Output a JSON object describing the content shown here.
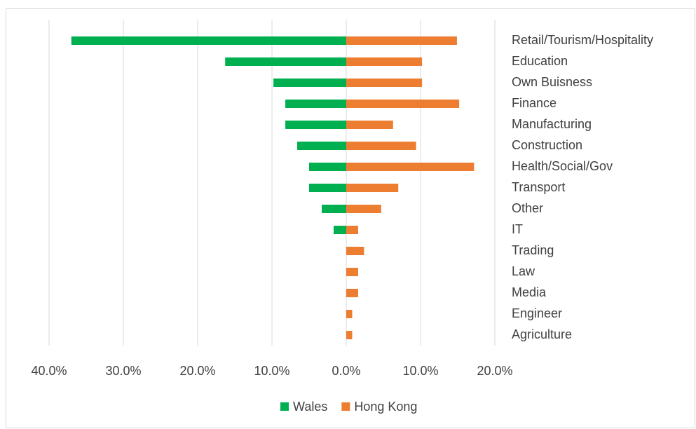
{
  "chart_data": {
    "type": "butterfly",
    "categories": [
      "Retail/Tourism/Hospitality",
      "Education",
      "Own Buisness",
      "Finance",
      "Manufacturing",
      "Construction",
      "Health/Social/Gov",
      "Transport",
      "Other",
      "IT",
      "Trading",
      "Law",
      "Media",
      "Engineer",
      "Agriculture"
    ],
    "series": [
      {
        "name": "Wales",
        "color": "#00b050",
        "values": [
          -37.0,
          -16.3,
          -9.8,
          -8.2,
          -8.2,
          -6.6,
          -5.0,
          -5.0,
          -3.3,
          -1.7,
          0,
          0,
          0,
          0,
          0
        ]
      },
      {
        "name": "Hong Kong",
        "color": "#ed7d31",
        "values": [
          14.9,
          10.2,
          10.2,
          15.2,
          6.3,
          9.4,
          17.2,
          7.0,
          4.7,
          1.6,
          2.4,
          1.6,
          1.6,
          0.8,
          0.8
        ]
      }
    ],
    "xlim": [
      -40,
      20
    ],
    "xticks": [
      {
        "value": -40,
        "label": "40.0%"
      },
      {
        "value": -30,
        "label": "30.0%"
      },
      {
        "value": -20,
        "label": "20.0%"
      },
      {
        "value": -10,
        "label": "10.0%"
      },
      {
        "value": 0,
        "label": "0.0%"
      },
      {
        "value": 10,
        "label": "10.0%"
      },
      {
        "value": 20,
        "label": "20.0%"
      }
    ],
    "grid": true,
    "legend": "bottom"
  }
}
